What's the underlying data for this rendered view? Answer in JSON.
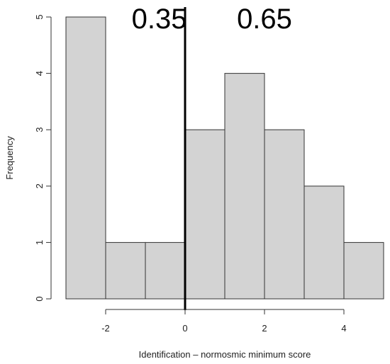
{
  "chart_data": {
    "type": "bar",
    "title": "",
    "xlabel": "Identification – normosmic minimum score",
    "ylabel": "Frequency",
    "bins": [
      {
        "x0": -3,
        "x1": -2,
        "value": 5
      },
      {
        "x0": -2,
        "x1": -1,
        "value": 1
      },
      {
        "x0": -1,
        "x1": 0,
        "value": 1
      },
      {
        "x0": 0,
        "x1": 1,
        "value": 3
      },
      {
        "x0": 1,
        "x1": 2,
        "value": 4
      },
      {
        "x0": 2,
        "x1": 3,
        "value": 3
      },
      {
        "x0": 3,
        "x1": 4,
        "value": 2
      },
      {
        "x0": 4,
        "x1": 5,
        "value": 1
      }
    ],
    "xlim": [
      -3,
      5
    ],
    "ylim": [
      0,
      5
    ],
    "x_ticks": [
      -2,
      0,
      2,
      4
    ],
    "x_tick_labels": [
      "-2",
      "0",
      "2",
      "4"
    ],
    "y_ticks": [
      0,
      1,
      2,
      3,
      4,
      5
    ],
    "y_tick_labels": [
      "0",
      "1",
      "2",
      "3",
      "4",
      "5"
    ],
    "reference_line": {
      "x": 0
    },
    "annotations": [
      {
        "text": "0.35",
        "x": -0.65,
        "y": 5
      },
      {
        "text": "0.65",
        "x": 2.0,
        "y": 5
      }
    ],
    "grid": false,
    "colors": {
      "bar_fill": "#d3d3d3",
      "bar_stroke": "#333333",
      "reference_line": "#000000"
    }
  }
}
